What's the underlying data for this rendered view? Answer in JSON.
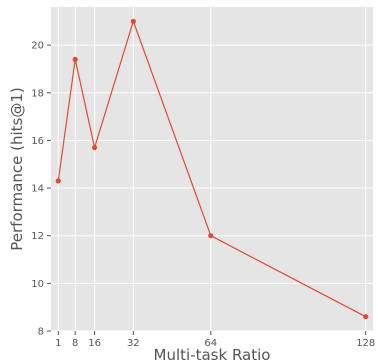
{
  "chart_data": {
    "type": "line",
    "title": "",
    "xlabel": "Multi-task Ratio",
    "ylabel": "Performance (hits@1)",
    "xlim": [
      -2,
      131
    ],
    "ylim": [
      8,
      21.6
    ],
    "x_ticks": [
      1,
      8,
      16,
      32,
      64,
      128
    ],
    "y_ticks": [
      8,
      10,
      12,
      14,
      16,
      18,
      20
    ],
    "grid": true,
    "style": "ggplot",
    "colors": {
      "background": "#e5e5e5",
      "grid": "#ffffff",
      "line": "#e24a33",
      "text": "#555555"
    },
    "series": [
      {
        "x": [
          1,
          8,
          16,
          32,
          64,
          128
        ],
        "values": [
          14.3,
          19.4,
          15.7,
          21.0,
          12.0,
          8.6
        ]
      }
    ]
  }
}
